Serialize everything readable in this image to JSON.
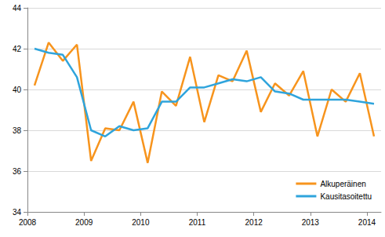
{
  "chart_data": {
    "type": "line",
    "x": [
      2008.125,
      2008.375,
      2008.625,
      2008.875,
      2009.125,
      2009.375,
      2009.625,
      2009.875,
      2010.125,
      2010.375,
      2010.625,
      2010.875,
      2011.125,
      2011.375,
      2011.625,
      2011.875,
      2012.125,
      2012.375,
      2012.625,
      2012.875,
      2013.125,
      2013.375,
      2013.625,
      2013.875,
      2014.125
    ],
    "series": [
      {
        "name": "Alkuperäinen",
        "color": "#f7941d",
        "values": [
          40.2,
          42.3,
          41.4,
          42.2,
          36.5,
          38.1,
          38.0,
          39.4,
          36.4,
          39.9,
          39.2,
          41.6,
          38.4,
          40.7,
          40.4,
          41.9,
          38.9,
          40.3,
          39.7,
          40.9,
          37.7,
          40.0,
          39.4,
          40.8,
          37.7
        ]
      },
      {
        "name": "Kausitasoitettu",
        "color": "#2fa4dc",
        "values": [
          42.0,
          41.8,
          41.7,
          40.6,
          38.0,
          37.7,
          38.2,
          38.0,
          38.1,
          39.4,
          39.4,
          40.1,
          40.1,
          40.3,
          40.5,
          40.4,
          40.6,
          39.9,
          39.8,
          39.5,
          39.5,
          39.5,
          39.5,
          39.4,
          39.3
        ]
      }
    ],
    "xlim": [
      2008,
      2014.25
    ],
    "xticks": [
      2008,
      2009,
      2010,
      2011,
      2012,
      2013,
      2014
    ],
    "ylim": [
      34,
      44
    ],
    "yticks": [
      34,
      36,
      38,
      40,
      42,
      44
    ],
    "grid": true,
    "legend": "lower right"
  }
}
